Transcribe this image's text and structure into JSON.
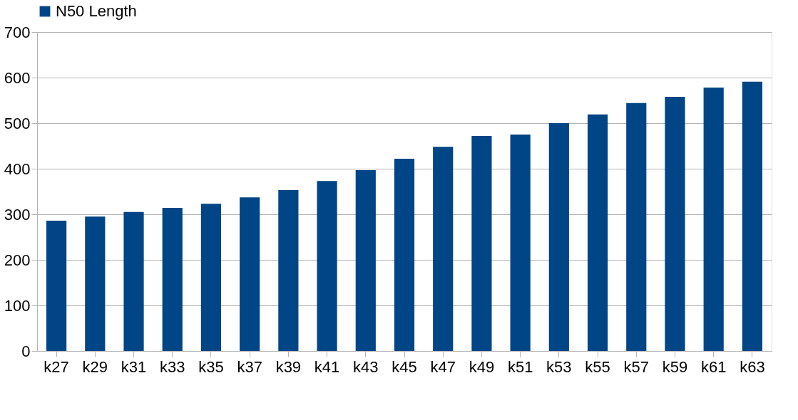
{
  "chart_data": {
    "type": "bar",
    "categories": [
      "k27",
      "k29",
      "k31",
      "k33",
      "k35",
      "k37",
      "k39",
      "k41",
      "k43",
      "k45",
      "k47",
      "k49",
      "k51",
      "k53",
      "k55",
      "k57",
      "k59",
      "k61",
      "k63"
    ],
    "series": [
      {
        "name": "N50 Length",
        "color": "#004586",
        "values": [
          286,
          295,
          305,
          314,
          323,
          337,
          353,
          373,
          397,
          422,
          448,
          472,
          475,
          500,
          519,
          544,
          558,
          578,
          591
        ]
      }
    ],
    "ylim": [
      0,
      700
    ],
    "yticks": [
      0,
      100,
      200,
      300,
      400,
      500,
      600,
      700
    ],
    "grid": "y",
    "legend": "top"
  }
}
